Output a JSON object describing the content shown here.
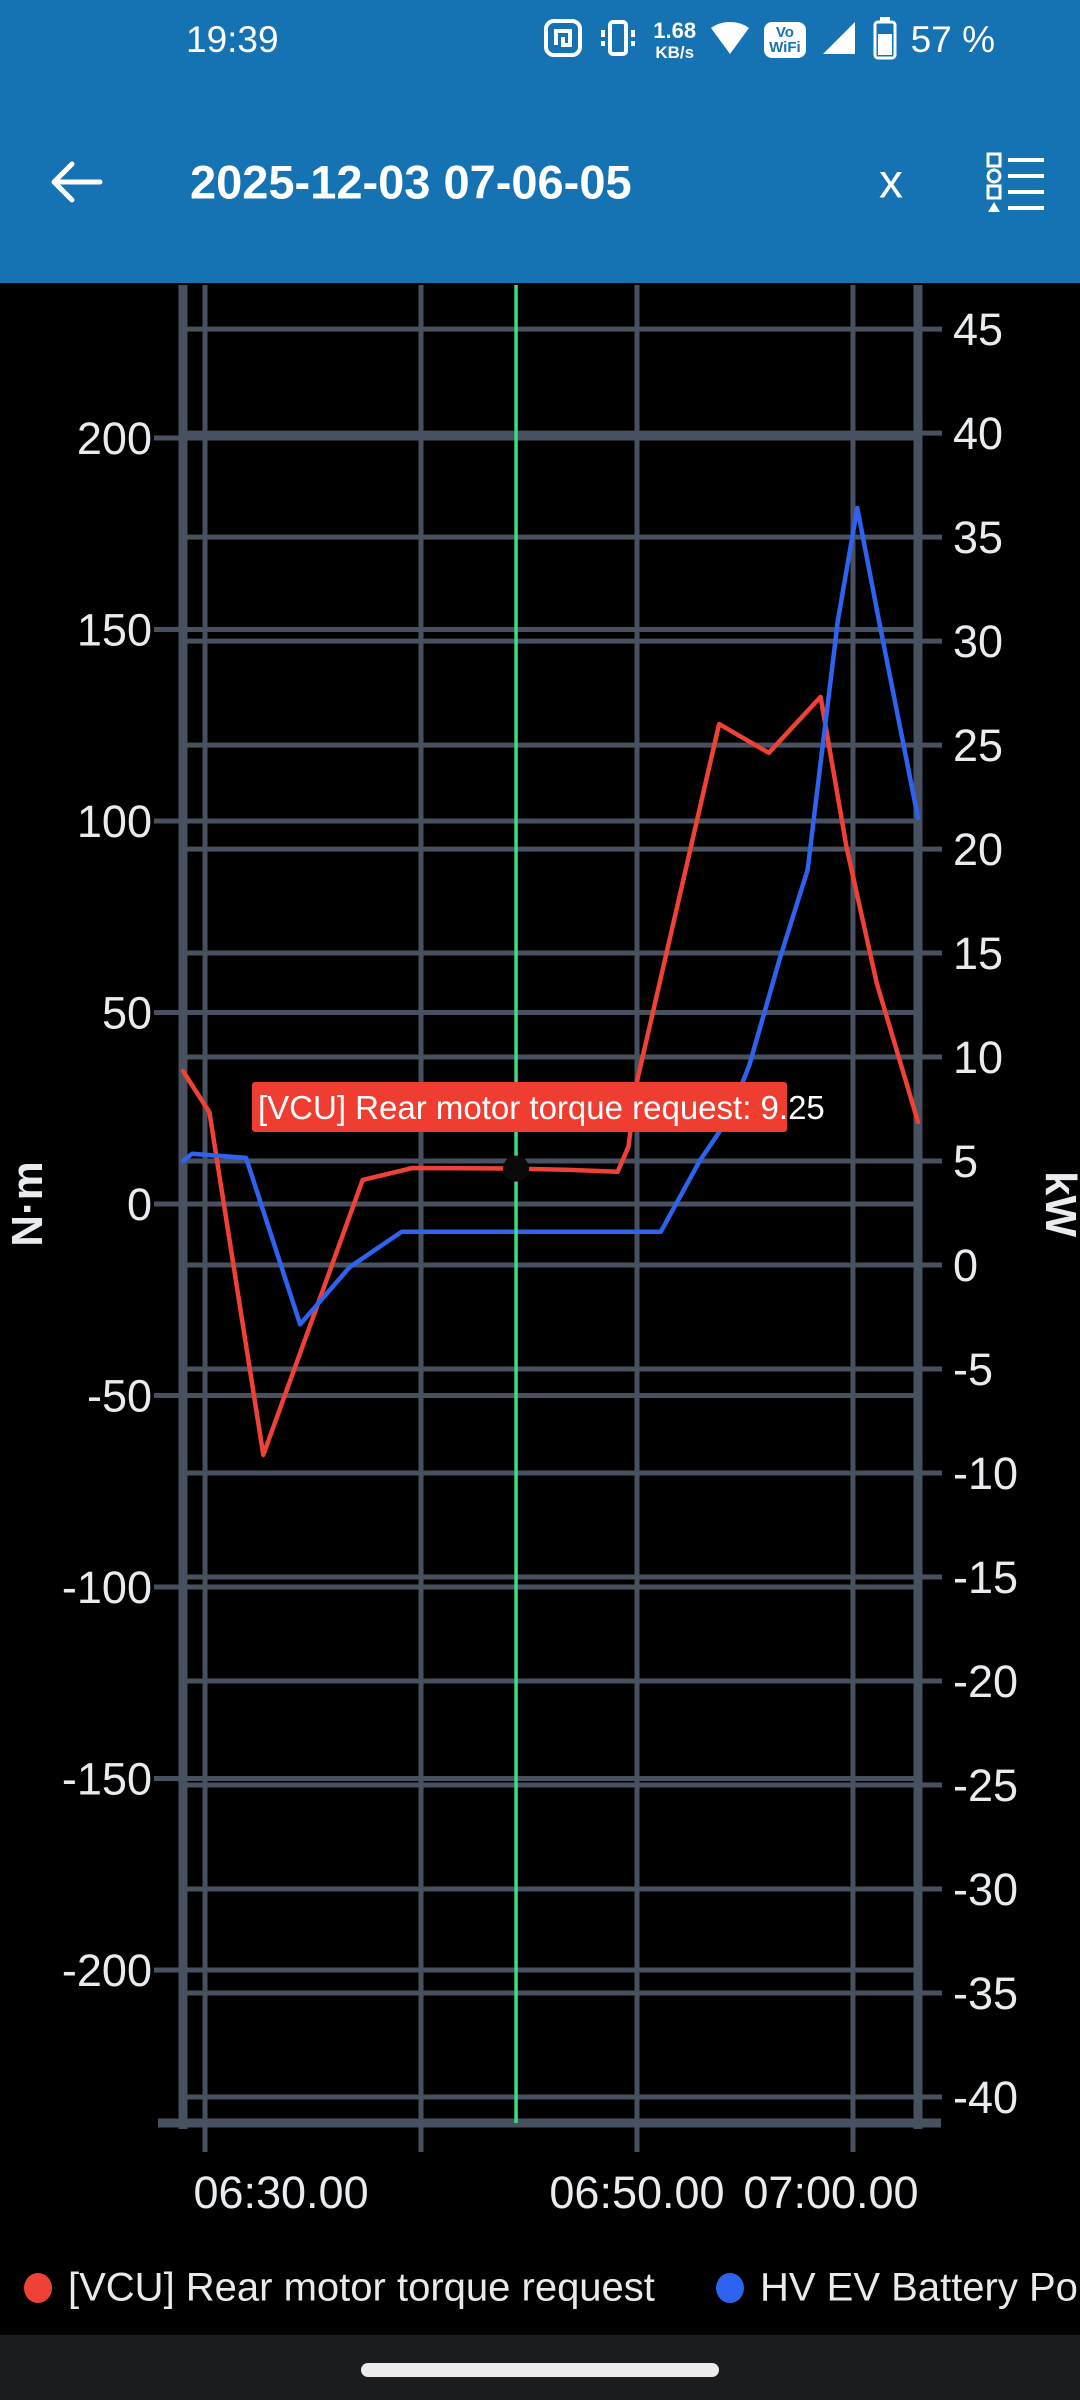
{
  "colors": {
    "app_bar_blue": "#1573b4",
    "chart_bg": "#000000",
    "grid": "#47515f",
    "axis_text": "#e9ecef",
    "red_series": "#ef4136",
    "blue_series": "#2e63f0",
    "cursor_green": "#3ddc84",
    "tooltip_bg": "#f03d32",
    "tooltip_fg": "#ffffff",
    "marker": "#0a0a0a"
  },
  "status_bar": {
    "time": "19:39",
    "net_speed_value": "1.68",
    "net_speed_unit": "KB/s",
    "vowifi_line1": "Vo",
    "vowifi_line2": "WiFi",
    "battery_percent": "57 %",
    "icons": [
      "nfc-icon",
      "vibrate-icon",
      "wifi-icon",
      "vowifi-badge",
      "cell-signal-icon",
      "battery-icon"
    ]
  },
  "app_bar": {
    "title": "2025-12-03 07-06-05",
    "back_icon": "arrow-left",
    "close_label": "x",
    "menu_icon": "series-list"
  },
  "chart_data": {
    "type": "line",
    "title": "",
    "x_axis": {
      "unit": "time",
      "range_minutes": [
        28.98,
        63.01
      ],
      "gridline_minutes": [
        30,
        40,
        50,
        60
      ],
      "labels": [
        {
          "minute": 30,
          "text": "06:30.00",
          "dx": 76
        },
        {
          "minute": 50,
          "text": "06:50.00",
          "dx": 0
        },
        {
          "minute": 60,
          "text": "07:00.00",
          "dx": -22
        }
      ]
    },
    "y_left": {
      "title": "N·m",
      "range": [
        -239.95,
        239.95
      ],
      "ticks": [
        200,
        150,
        100,
        50,
        0,
        -50,
        -100,
        -150,
        -200
      ]
    },
    "y_right": {
      "title": "kW",
      "range": [
        -41.25,
        47.12
      ],
      "ticks": [
        45,
        40,
        35,
        30,
        25,
        20,
        15,
        10,
        5,
        0,
        -5,
        -10,
        -15,
        -20,
        -25,
        -30,
        -35,
        -40
      ]
    },
    "grid_on": true,
    "legend_position": "bottom",
    "series": [
      {
        "name": "[VCU] Rear motor torque request",
        "color": "#ef4136",
        "axis": "left",
        "points": [
          [
            28.98,
            34.7
          ],
          [
            30.2,
            24.0
          ],
          [
            32.7,
            -65.5
          ],
          [
            37.3,
            6.3
          ],
          [
            39.6,
            9.4
          ],
          [
            44.4,
            9.25
          ],
          [
            46.9,
            8.9
          ],
          [
            49.1,
            8.4
          ],
          [
            49.6,
            14.9
          ],
          [
            50.0,
            32.0
          ],
          [
            53.8,
            125.3
          ],
          [
            56.1,
            117.8
          ],
          [
            58.5,
            132.4
          ],
          [
            59.7,
            93.2
          ],
          [
            61.1,
            57.7
          ],
          [
            63.01,
            21.4
          ]
        ]
      },
      {
        "name": "HV EV Battery Po",
        "color": "#2e63f0",
        "axis": "right",
        "points": [
          [
            28.98,
            5.0
          ],
          [
            29.4,
            5.35
          ],
          [
            31.9,
            5.15
          ],
          [
            34.4,
            -2.85
          ],
          [
            36.7,
            -0.1
          ],
          [
            39.1,
            1.6
          ],
          [
            51.1,
            1.6
          ],
          [
            52.9,
            5.0
          ],
          [
            54.2,
            7.0
          ],
          [
            55.2,
            9.6
          ],
          [
            56.6,
            14.7
          ],
          [
            57.9,
            19.0
          ],
          [
            59.3,
            31.0
          ],
          [
            60.2,
            36.4
          ],
          [
            61.2,
            31.0
          ],
          [
            63.01,
            21.5
          ]
        ]
      }
    ],
    "cursor": {
      "minute": 44.4,
      "color": "#3ddc84",
      "marker": {
        "minute": 44.4,
        "value": 9.25,
        "axis": "left"
      }
    },
    "tooltip": {
      "text": "[VCU] Rear motor torque request: 9.25",
      "bg": "#f03d32",
      "fg": "#ffffff"
    }
  },
  "legend": {
    "items": [
      {
        "label": "[VCU] Rear motor torque request",
        "color": "#ef4136"
      },
      {
        "label": "HV EV Battery Po",
        "color": "#2e63f0"
      }
    ]
  }
}
